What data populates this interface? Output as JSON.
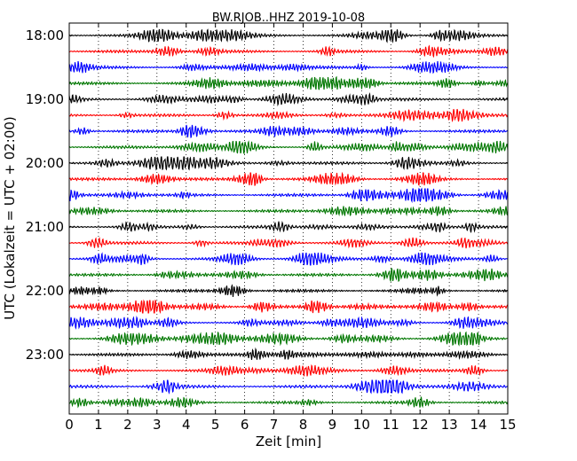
{
  "chart_data": {
    "type": "line",
    "title": "BW.RJOB..HHZ 2019-10-08",
    "xlabel": "Zeit  [min]",
    "ylabel": "UTC (Lokalzeit = UTC + 02:00)",
    "xlim": [
      0,
      15
    ],
    "x_ticks": [
      "0",
      "1",
      "2",
      "3",
      "4",
      "5",
      "6",
      "7",
      "8",
      "9",
      "10",
      "11",
      "12",
      "13",
      "14",
      "15"
    ],
    "y_tick_labels": [
      "18:00",
      "19:00",
      "20:00",
      "21:00",
      "22:00",
      "23:00"
    ],
    "grid": "vertical dotted",
    "trace_colors": [
      "#000000",
      "#ff0000",
      "#0000ff",
      "#007700"
    ],
    "traces_per_hour": 4,
    "hours": 6,
    "traces": [
      {
        "start": "18:00",
        "color": "#000000"
      },
      {
        "start": "18:15",
        "color": "#ff0000"
      },
      {
        "start": "18:30",
        "color": "#0000ff"
      },
      {
        "start": "18:45",
        "color": "#007700"
      },
      {
        "start": "19:00",
        "color": "#000000"
      },
      {
        "start": "19:15",
        "color": "#ff0000"
      },
      {
        "start": "19:30",
        "color": "#0000ff"
      },
      {
        "start": "19:45",
        "color": "#007700"
      },
      {
        "start": "20:00",
        "color": "#000000"
      },
      {
        "start": "20:15",
        "color": "#ff0000"
      },
      {
        "start": "20:30",
        "color": "#0000ff"
      },
      {
        "start": "20:45",
        "color": "#007700"
      },
      {
        "start": "21:00",
        "color": "#000000"
      },
      {
        "start": "21:15",
        "color": "#ff0000"
      },
      {
        "start": "21:30",
        "color": "#0000ff"
      },
      {
        "start": "21:45",
        "color": "#007700"
      },
      {
        "start": "22:00",
        "color": "#000000"
      },
      {
        "start": "22:15",
        "color": "#ff0000"
      },
      {
        "start": "22:30",
        "color": "#0000ff"
      },
      {
        "start": "22:45",
        "color": "#007700"
      },
      {
        "start": "23:00",
        "color": "#000000"
      },
      {
        "start": "23:15",
        "color": "#ff0000"
      },
      {
        "start": "23:30",
        "color": "#0000ff"
      },
      {
        "start": "23:45",
        "color": "#007700"
      }
    ]
  }
}
